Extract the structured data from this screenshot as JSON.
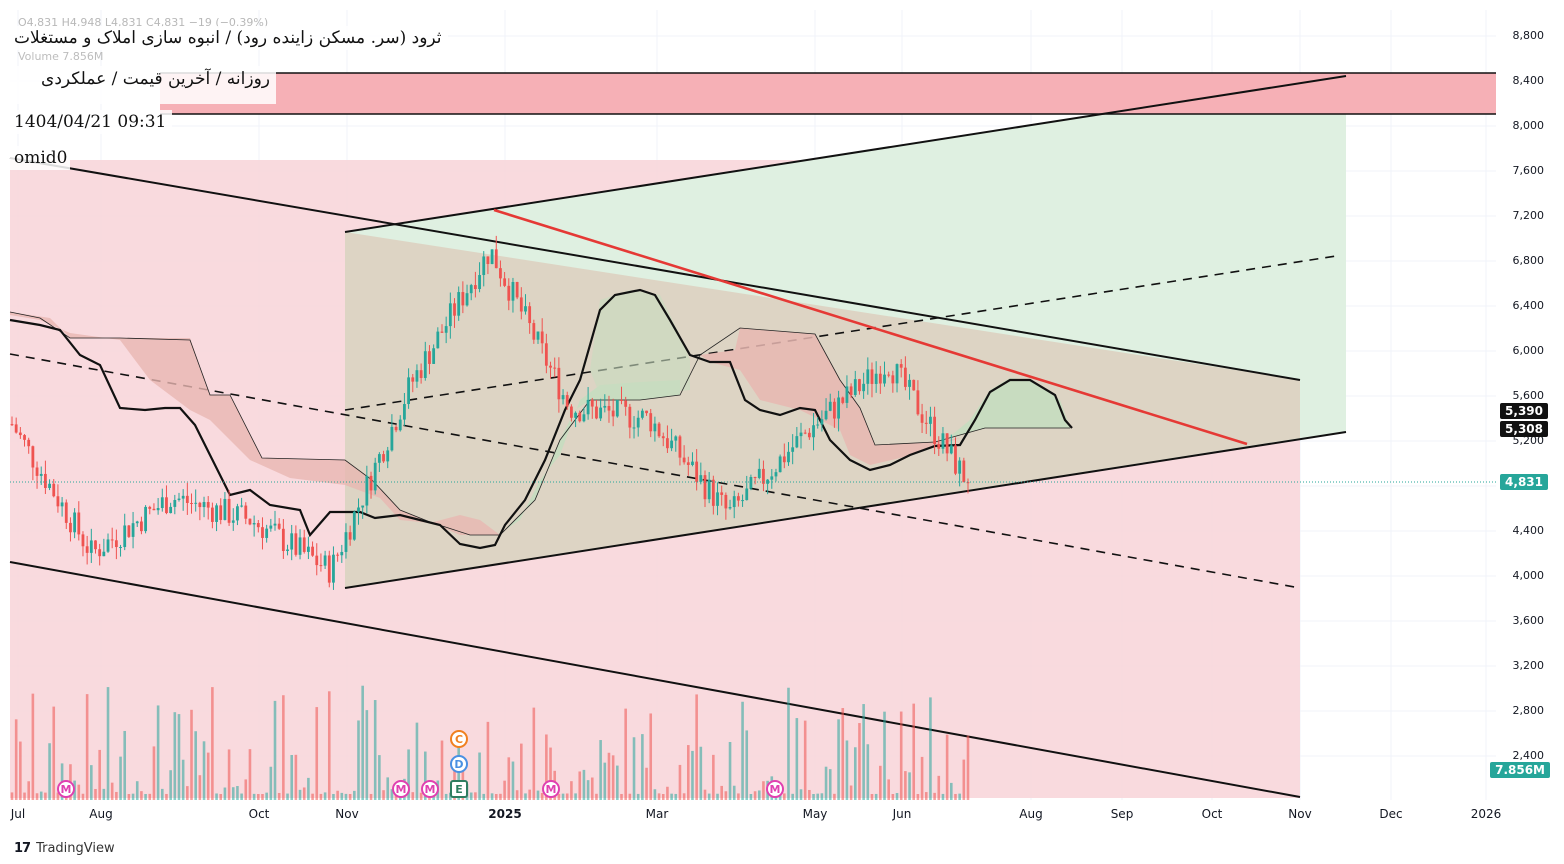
{
  "header": {
    "ghost_ohlc": "O4,831  H4,948  L4,831  C4,831  −19 (−0.39%)",
    "ghost_volume": "Volume  7.856M",
    "title": "ثرود (سر. مسکن زاینده رود) / انبوه سازی املاک و مستغلات",
    "subtitle": "روزانه / آخرین قیمت / عملکردی",
    "datetime": "1404/04/21 09:31",
    "author": "omid0"
  },
  "colors": {
    "up": "#26a69a",
    "down": "#ef5350",
    "pink_zone": "#f8d3d8",
    "green_zone": "#dff0e1",
    "red_band": "#f6b0b6",
    "resistance": "#e53935",
    "cloud_green": "#c8dcc0",
    "cloud_red": "#e8b7b2"
  },
  "axis": {
    "price_ticks": [
      "8,800",
      "8,400",
      "8,000",
      "7,600",
      "7,200",
      "6,800",
      "6,400",
      "6,000",
      "5,600",
      "5,200",
      "4,800",
      "4,400",
      "4,000",
      "3,600",
      "3,200",
      "2,800",
      "2,400"
    ],
    "time_ticks": [
      "Jul",
      "Aug",
      "Oct",
      "Nov",
      "2025",
      "Mar",
      "May",
      "Jun",
      "Aug",
      "Sep",
      "Oct",
      "Nov",
      "Dec",
      "2026"
    ]
  },
  "tags": {
    "price_5390": "5,390",
    "price_5308": "5,308",
    "last_price": "4,831",
    "volume": "7.856M"
  },
  "markers": [
    "M",
    "M",
    "M",
    "C",
    "D",
    "E",
    "M",
    "M"
  ],
  "footer": {
    "brand": "TradingView"
  },
  "chart_data": {
    "type": "candlestick",
    "title": "ثرود (سر. مسکن زاینده رود) / انبوه سازی املاک و مستغلات",
    "interval": "daily",
    "last_close": 4831,
    "ylim": [
      2200,
      8900
    ],
    "price_scale_ticks": [
      2400,
      2800,
      3200,
      3600,
      4000,
      4400,
      4800,
      5200,
      5600,
      6000,
      6400,
      6800,
      7200,
      7600,
      8000,
      8400,
      8800
    ],
    "approx_close_path": [
      {
        "month": "Jul 2024",
        "close": 5350
      },
      {
        "month": "Aug 2024",
        "close": 4200
      },
      {
        "month": "Sep 2024",
        "close": 4700
      },
      {
        "month": "Oct 2024",
        "close": 4500
      },
      {
        "month": "Nov 2024",
        "close": 4050
      },
      {
        "month": "Dec 2024",
        "close": 5700
      },
      {
        "month": "Jan 2025",
        "close": 6900
      },
      {
        "month": "Feb 2025",
        "close": 5500
      },
      {
        "month": "Mar 2025",
        "close": 5400
      },
      {
        "month": "Apr 2025",
        "close": 4550
      },
      {
        "month": "May 2025",
        "close": 5300
      },
      {
        "month": "Jun 2025",
        "close": 5900
      },
      {
        "month": "Jul 2025",
        "close": 4831
      }
    ],
    "resistance_band": [
      8120,
      8480
    ],
    "annotations": [
      "5,390",
      "5,308",
      "4,831",
      "7.856M"
    ],
    "indicators": [
      "Ichimoku",
      "Volume"
    ],
    "grid": true
  }
}
